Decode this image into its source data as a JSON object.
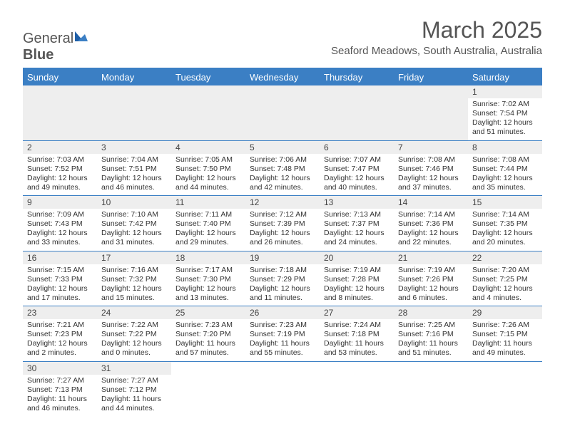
{
  "brand": {
    "part1": "General",
    "part2": "Blue"
  },
  "title": "March 2025",
  "location": "Seaford Meadows, South Australia, Australia",
  "colors": {
    "accent": "#3b7fc4",
    "header_bg": "#eeeeee",
    "text": "#333333",
    "title_text": "#555555",
    "background": "#ffffff"
  },
  "typography": {
    "title_fontsize": 32,
    "location_fontsize": 15,
    "dayheader_fontsize": 13,
    "daynum_fontsize": 12,
    "info_fontsize": 10.5
  },
  "layout": {
    "columns": 7,
    "rows": 6
  },
  "day_headers": [
    "Sunday",
    "Monday",
    "Tuesday",
    "Wednesday",
    "Thursday",
    "Friday",
    "Saturday"
  ],
  "weeks": [
    [
      null,
      null,
      null,
      null,
      null,
      null,
      {
        "n": "1",
        "sunrise": "Sunrise: 7:02 AM",
        "sunset": "Sunset: 7:54 PM",
        "daylight": "Daylight: 12 hours and 51 minutes."
      }
    ],
    [
      {
        "n": "2",
        "sunrise": "Sunrise: 7:03 AM",
        "sunset": "Sunset: 7:52 PM",
        "daylight": "Daylight: 12 hours and 49 minutes."
      },
      {
        "n": "3",
        "sunrise": "Sunrise: 7:04 AM",
        "sunset": "Sunset: 7:51 PM",
        "daylight": "Daylight: 12 hours and 46 minutes."
      },
      {
        "n": "4",
        "sunrise": "Sunrise: 7:05 AM",
        "sunset": "Sunset: 7:50 PM",
        "daylight": "Daylight: 12 hours and 44 minutes."
      },
      {
        "n": "5",
        "sunrise": "Sunrise: 7:06 AM",
        "sunset": "Sunset: 7:48 PM",
        "daylight": "Daylight: 12 hours and 42 minutes."
      },
      {
        "n": "6",
        "sunrise": "Sunrise: 7:07 AM",
        "sunset": "Sunset: 7:47 PM",
        "daylight": "Daylight: 12 hours and 40 minutes."
      },
      {
        "n": "7",
        "sunrise": "Sunrise: 7:08 AM",
        "sunset": "Sunset: 7:46 PM",
        "daylight": "Daylight: 12 hours and 37 minutes."
      },
      {
        "n": "8",
        "sunrise": "Sunrise: 7:08 AM",
        "sunset": "Sunset: 7:44 PM",
        "daylight": "Daylight: 12 hours and 35 minutes."
      }
    ],
    [
      {
        "n": "9",
        "sunrise": "Sunrise: 7:09 AM",
        "sunset": "Sunset: 7:43 PM",
        "daylight": "Daylight: 12 hours and 33 minutes."
      },
      {
        "n": "10",
        "sunrise": "Sunrise: 7:10 AM",
        "sunset": "Sunset: 7:42 PM",
        "daylight": "Daylight: 12 hours and 31 minutes."
      },
      {
        "n": "11",
        "sunrise": "Sunrise: 7:11 AM",
        "sunset": "Sunset: 7:40 PM",
        "daylight": "Daylight: 12 hours and 29 minutes."
      },
      {
        "n": "12",
        "sunrise": "Sunrise: 7:12 AM",
        "sunset": "Sunset: 7:39 PM",
        "daylight": "Daylight: 12 hours and 26 minutes."
      },
      {
        "n": "13",
        "sunrise": "Sunrise: 7:13 AM",
        "sunset": "Sunset: 7:37 PM",
        "daylight": "Daylight: 12 hours and 24 minutes."
      },
      {
        "n": "14",
        "sunrise": "Sunrise: 7:14 AM",
        "sunset": "Sunset: 7:36 PM",
        "daylight": "Daylight: 12 hours and 22 minutes."
      },
      {
        "n": "15",
        "sunrise": "Sunrise: 7:14 AM",
        "sunset": "Sunset: 7:35 PM",
        "daylight": "Daylight: 12 hours and 20 minutes."
      }
    ],
    [
      {
        "n": "16",
        "sunrise": "Sunrise: 7:15 AM",
        "sunset": "Sunset: 7:33 PM",
        "daylight": "Daylight: 12 hours and 17 minutes."
      },
      {
        "n": "17",
        "sunrise": "Sunrise: 7:16 AM",
        "sunset": "Sunset: 7:32 PM",
        "daylight": "Daylight: 12 hours and 15 minutes."
      },
      {
        "n": "18",
        "sunrise": "Sunrise: 7:17 AM",
        "sunset": "Sunset: 7:30 PM",
        "daylight": "Daylight: 12 hours and 13 minutes."
      },
      {
        "n": "19",
        "sunrise": "Sunrise: 7:18 AM",
        "sunset": "Sunset: 7:29 PM",
        "daylight": "Daylight: 12 hours and 11 minutes."
      },
      {
        "n": "20",
        "sunrise": "Sunrise: 7:19 AM",
        "sunset": "Sunset: 7:28 PM",
        "daylight": "Daylight: 12 hours and 8 minutes."
      },
      {
        "n": "21",
        "sunrise": "Sunrise: 7:19 AM",
        "sunset": "Sunset: 7:26 PM",
        "daylight": "Daylight: 12 hours and 6 minutes."
      },
      {
        "n": "22",
        "sunrise": "Sunrise: 7:20 AM",
        "sunset": "Sunset: 7:25 PM",
        "daylight": "Daylight: 12 hours and 4 minutes."
      }
    ],
    [
      {
        "n": "23",
        "sunrise": "Sunrise: 7:21 AM",
        "sunset": "Sunset: 7:23 PM",
        "daylight": "Daylight: 12 hours and 2 minutes."
      },
      {
        "n": "24",
        "sunrise": "Sunrise: 7:22 AM",
        "sunset": "Sunset: 7:22 PM",
        "daylight": "Daylight: 12 hours and 0 minutes."
      },
      {
        "n": "25",
        "sunrise": "Sunrise: 7:23 AM",
        "sunset": "Sunset: 7:20 PM",
        "daylight": "Daylight: 11 hours and 57 minutes."
      },
      {
        "n": "26",
        "sunrise": "Sunrise: 7:23 AM",
        "sunset": "Sunset: 7:19 PM",
        "daylight": "Daylight: 11 hours and 55 minutes."
      },
      {
        "n": "27",
        "sunrise": "Sunrise: 7:24 AM",
        "sunset": "Sunset: 7:18 PM",
        "daylight": "Daylight: 11 hours and 53 minutes."
      },
      {
        "n": "28",
        "sunrise": "Sunrise: 7:25 AM",
        "sunset": "Sunset: 7:16 PM",
        "daylight": "Daylight: 11 hours and 51 minutes."
      },
      {
        "n": "29",
        "sunrise": "Sunrise: 7:26 AM",
        "sunset": "Sunset: 7:15 PM",
        "daylight": "Daylight: 11 hours and 49 minutes."
      }
    ],
    [
      {
        "n": "30",
        "sunrise": "Sunrise: 7:27 AM",
        "sunset": "Sunset: 7:13 PM",
        "daylight": "Daylight: 11 hours and 46 minutes."
      },
      {
        "n": "31",
        "sunrise": "Sunrise: 7:27 AM",
        "sunset": "Sunset: 7:12 PM",
        "daylight": "Daylight: 11 hours and 44 minutes."
      },
      null,
      null,
      null,
      null,
      null
    ]
  ]
}
